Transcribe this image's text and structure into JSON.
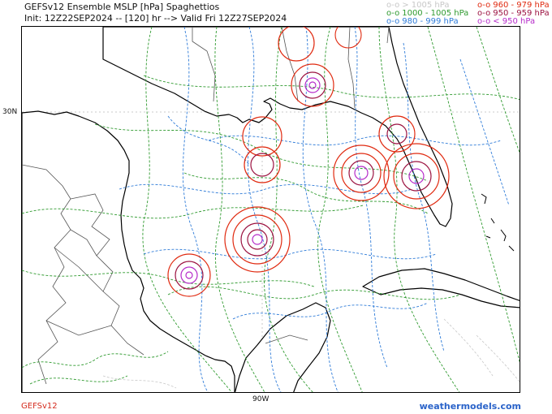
{
  "header": {
    "title": "GEFSv12 Ensemble MSLP [hPa] Spaghettios",
    "init_line": "Init: 12Z22SEP2024 -- [120] hr --> Valid Fri 12Z27SEP2024"
  },
  "legend": {
    "marker": "o-o",
    "entries": [
      {
        "label": "> 1005 hPa",
        "color": "#c8c8c8"
      },
      {
        "label": "1000 - 1005 hPa",
        "color": "#2f9a2f"
      },
      {
        "label": "980 - 999 hPa",
        "color": "#2e7bd8"
      },
      {
        "label": "960 - 979 hPa",
        "color": "#e02a10"
      },
      {
        "label": "950 - 959 hPa",
        "color": "#9b1240"
      },
      {
        "label": "< 950 hPa",
        "color": "#b52bc9"
      }
    ]
  },
  "axes": {
    "lat_label": "30N",
    "lon_label": "90W"
  },
  "footer": {
    "model": "GEFSv12",
    "site": "weathermodels.com"
  },
  "colors": {
    "coastline": "#000000",
    "borders": "#555555",
    "grid": "#bbbbbb"
  }
}
